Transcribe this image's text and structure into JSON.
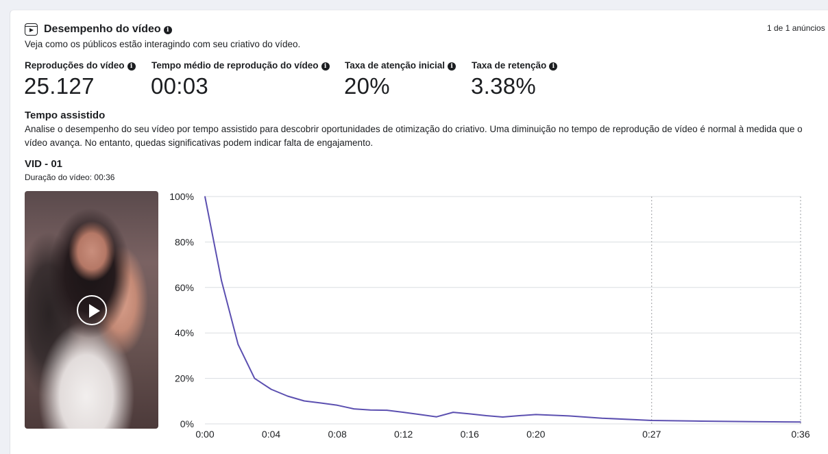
{
  "header": {
    "title": "Desempenho do vídeo",
    "subtitle": "Veja como os públicos estão interagindo com seu criativo do vídeo.",
    "counter": "1 de 1 anúncios",
    "icon": "video-reel-icon"
  },
  "metrics": [
    {
      "label": "Reproduções do vídeo",
      "value": "25.127"
    },
    {
      "label": "Tempo médio de reprodução do vídeo",
      "value": "00:03"
    },
    {
      "label": "Taxa de atenção inicial",
      "value": "20%"
    },
    {
      "label": "Taxa de retenção",
      "value": "3.38%"
    }
  ],
  "section": {
    "title": "Tempo assistido",
    "description": "Analise o desempenho do seu vídeo por tempo assistido para descobrir oportunidades de otimização do criativo. Uma diminuição no tempo de reprodução de vídeo é normal à medida que o vídeo avança. No entanto, quedas significativas podem indicar falta de engajamento."
  },
  "video": {
    "name": "VID - 01",
    "duration_label": "Duração do vídeo: 00:36",
    "play_icon": "play-icon"
  },
  "colors": {
    "line": "#5b4fb0",
    "grid": "#dadde1",
    "text": "#1c1e21"
  },
  "chart_data": {
    "type": "line",
    "title": "",
    "xlabel": "",
    "ylabel": "",
    "x_unit": "seconds",
    "xlim": [
      0,
      36
    ],
    "ylim": [
      0,
      100
    ],
    "x_ticks": [
      {
        "value": 0,
        "label": "0:00"
      },
      {
        "value": 4,
        "label": "0:04"
      },
      {
        "value": 8,
        "label": "0:08"
      },
      {
        "value": 12,
        "label": "0:12"
      },
      {
        "value": 16,
        "label": "0:16"
      },
      {
        "value": 20,
        "label": "0:20"
      },
      {
        "value": 27,
        "label": "0:27"
      },
      {
        "value": 36,
        "label": "0:36"
      }
    ],
    "y_ticks": [
      {
        "value": 0,
        "label": "0%"
      },
      {
        "value": 20,
        "label": "20%"
      },
      {
        "value": 40,
        "label": "40%"
      },
      {
        "value": 60,
        "label": "60%"
      },
      {
        "value": 80,
        "label": "80%"
      },
      {
        "value": 100,
        "label": "100%"
      }
    ],
    "dashed_vertical_at": [
      27,
      36
    ],
    "grid": true,
    "series": [
      {
        "x": [
          0,
          1,
          2,
          3,
          4,
          5,
          6,
          7,
          8,
          9,
          10,
          11,
          12,
          13,
          14,
          15,
          16,
          17,
          18,
          19,
          20,
          22,
          24,
          27,
          30,
          33,
          36
        ],
        "values": [
          100,
          63,
          35,
          20,
          15.2,
          12.2,
          10.1,
          9.2,
          8.2,
          6.6,
          6.1,
          6.0,
          5.1,
          4.1,
          3.1,
          5.1,
          4.4,
          3.6,
          3.0,
          3.6,
          4.1,
          3.5,
          2.5,
          1.5,
          1.2,
          1.0,
          0.8
        ]
      }
    ]
  }
}
